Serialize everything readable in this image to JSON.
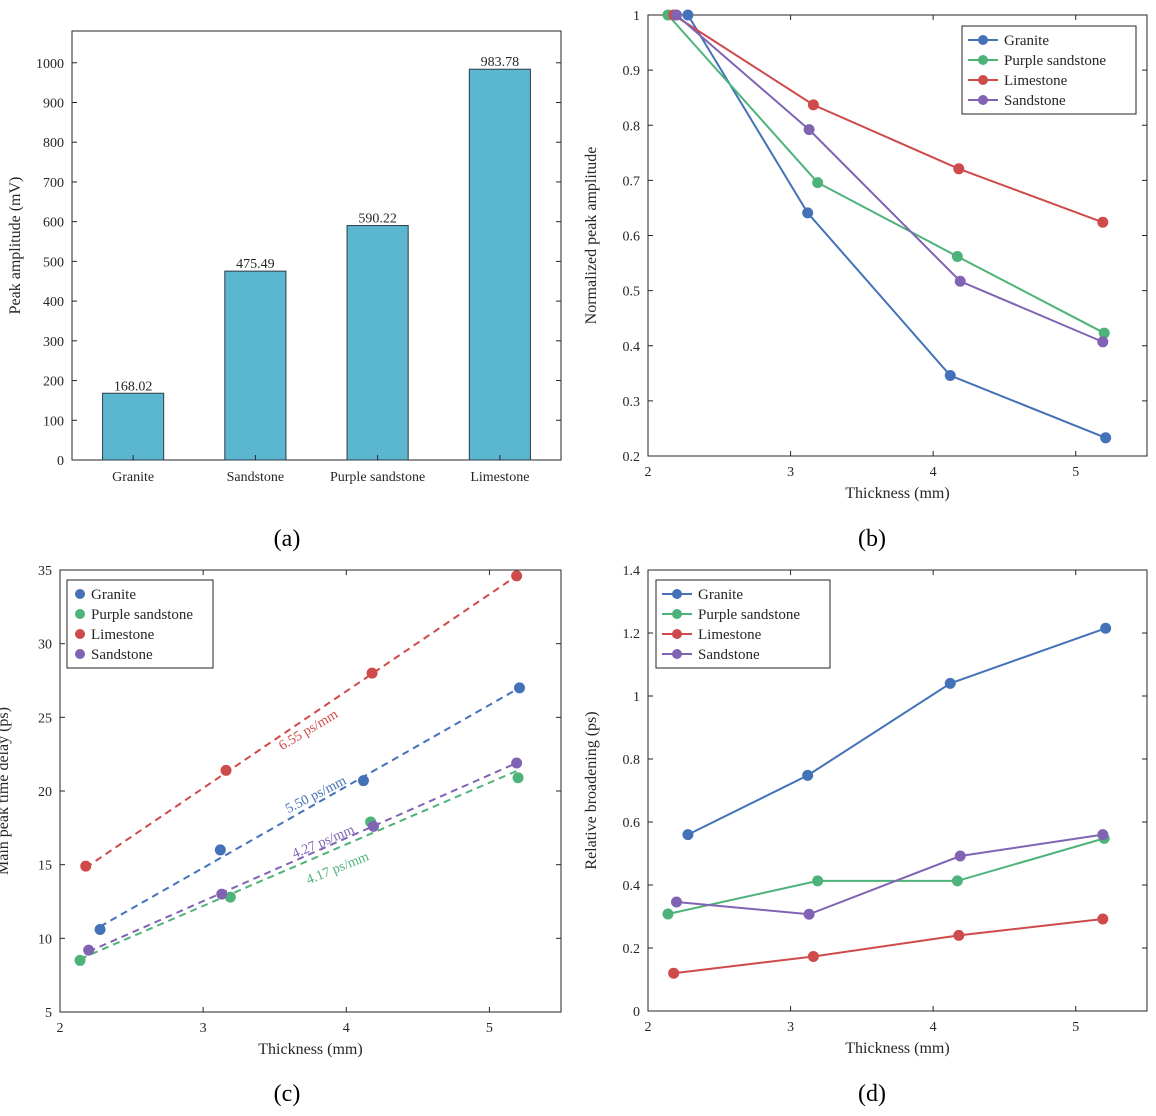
{
  "colors": {
    "granite": "#4472b8",
    "purple_sandstone": "#4db37a",
    "limestone": "#cf4a4a",
    "sandstone": "#8064b3",
    "bar_fill": "#5bb7cf"
  },
  "panel_labels": [
    "(a)",
    "(b)",
    "(c)",
    "(d)"
  ],
  "chart_data": [
    {
      "type": "bar",
      "panel": "(a)",
      "categories": [
        "Granite",
        "Sandstone",
        "Purple sandstone",
        "Limestone"
      ],
      "values": [
        168.02,
        475.49,
        590.22,
        983.78
      ],
      "value_labels": [
        "168.02",
        "475.49",
        "590.22",
        "983.78"
      ],
      "xlabel": "",
      "ylabel": "Peak amplitude (mV)",
      "ylim": [
        0,
        1080
      ],
      "yticks": [
        0,
        100,
        200,
        300,
        400,
        500,
        600,
        700,
        800,
        900,
        1000
      ],
      "grid": false
    },
    {
      "type": "line",
      "panel": "(b)",
      "xlabel": "Thickness (mm)",
      "ylabel": "Normalized peak amplitude",
      "xlim": [
        2,
        5.5
      ],
      "ylim": [
        0.2,
        1
      ],
      "xticks": [
        2,
        3,
        4,
        5
      ],
      "yticks": [
        0.2,
        0.3,
        0.4,
        0.5,
        0.6,
        0.7,
        0.8,
        0.9,
        1
      ],
      "ytick_labels": [
        "0.2",
        "0.3",
        "0.4",
        "0.5",
        "0.6",
        "0.7",
        "0.8",
        "0.9",
        "1"
      ],
      "legend_position": "top-right",
      "series": [
        {
          "name": "Granite",
          "color_key": "granite",
          "x": [
            2.28,
            3.12,
            4.12,
            5.21
          ],
          "y": [
            1.0,
            0.641,
            0.346,
            0.233
          ]
        },
        {
          "name": "Purple sandstone",
          "color_key": "purple_sandstone",
          "x": [
            2.14,
            3.19,
            4.17,
            5.2
          ],
          "y": [
            1.0,
            0.696,
            0.562,
            0.423
          ]
        },
        {
          "name": "Limestone",
          "color_key": "limestone",
          "x": [
            2.18,
            3.16,
            4.18,
            5.19
          ],
          "y": [
            1.0,
            0.837,
            0.721,
            0.624
          ]
        },
        {
          "name": "Sandstone",
          "color_key": "sandstone",
          "x": [
            2.2,
            3.13,
            4.19,
            5.19
          ],
          "y": [
            1.0,
            0.792,
            0.517,
            0.407
          ]
        }
      ]
    },
    {
      "type": "scatter",
      "panel": "(c)",
      "xlabel": "Thickness (mm)",
      "ylabel": "Main peak time delay (ps)",
      "xlim": [
        2,
        5.5
      ],
      "ylim": [
        5,
        35
      ],
      "xticks": [
        2,
        3,
        4,
        5
      ],
      "yticks": [
        5,
        10,
        15,
        20,
        25,
        30,
        35
      ],
      "legend_position": "top-left",
      "series": [
        {
          "name": "Granite",
          "color_key": "granite",
          "x": [
            2.28,
            3.12,
            4.12,
            5.21
          ],
          "y": [
            10.6,
            16.0,
            20.7,
            27.0
          ],
          "fit": [
            [
              2.28,
              10.8
            ],
            [
              5.21,
              27.0
            ]
          ],
          "slope_label": "5.50 ps/mm",
          "slope_anchor": [
            3.8,
            19.5
          ],
          "slope_angle": -27
        },
        {
          "name": "Purple sandstone",
          "color_key": "purple_sandstone",
          "x": [
            2.14,
            3.19,
            4.17,
            5.2
          ],
          "y": [
            8.5,
            12.8,
            17.9,
            20.9
          ],
          "fit": [
            [
              2.14,
              8.6
            ],
            [
              5.2,
              21.4
            ]
          ],
          "slope_label": "4.17 ps/mm",
          "slope_anchor": [
            3.95,
            14.5
          ],
          "slope_angle": -22
        },
        {
          "name": "Limestone",
          "color_key": "limestone",
          "x": [
            2.18,
            3.16,
            4.18,
            5.19
          ],
          "y": [
            14.9,
            21.4,
            28.0,
            34.6
          ],
          "fit": [
            [
              2.18,
              14.8
            ],
            [
              5.19,
              34.6
            ]
          ],
          "slope_label": "6.55 ps/mm",
          "slope_anchor": [
            3.75,
            23.9
          ],
          "slope_angle": -31
        },
        {
          "name": "Sandstone",
          "color_key": "sandstone",
          "x": [
            2.2,
            3.13,
            4.19,
            5.19
          ],
          "y": [
            9.2,
            13.0,
            17.6,
            21.9
          ],
          "fit": [
            [
              2.2,
              9.1
            ],
            [
              5.19,
              21.9
            ]
          ],
          "slope_label": "4.27 ps/mm",
          "slope_anchor": [
            3.85,
            16.3
          ],
          "slope_angle": -23
        }
      ]
    },
    {
      "type": "line",
      "panel": "(d)",
      "xlabel": "Thickness (mm)",
      "ylabel": "Relative broadening (ps)",
      "xlim": [
        2,
        5.5
      ],
      "ylim": [
        0,
        1.4
      ],
      "xticks": [
        2,
        3,
        4,
        5
      ],
      "yticks": [
        0,
        0.2,
        0.4,
        0.6,
        0.8,
        1,
        1.2,
        1.4
      ],
      "ytick_labels": [
        "0",
        "0.2",
        "0.4",
        "0.6",
        "0.8",
        "1",
        "1.2",
        "1.4"
      ],
      "legend_position": "top-left",
      "series": [
        {
          "name": "Granite",
          "color_key": "granite",
          "x": [
            2.28,
            3.12,
            4.12,
            5.21
          ],
          "y": [
            0.56,
            0.748,
            1.04,
            1.215
          ]
        },
        {
          "name": "Purple sandstone",
          "color_key": "purple_sandstone",
          "x": [
            2.14,
            3.19,
            4.17,
            5.2
          ],
          "y": [
            0.308,
            0.413,
            0.413,
            0.548
          ]
        },
        {
          "name": "Limestone",
          "color_key": "limestone",
          "x": [
            2.18,
            3.16,
            4.18,
            5.19
          ],
          "y": [
            0.12,
            0.173,
            0.24,
            0.292
          ]
        },
        {
          "name": "Sandstone",
          "color_key": "sandstone",
          "x": [
            2.2,
            3.13,
            4.19,
            5.19
          ],
          "y": [
            0.346,
            0.307,
            0.492,
            0.56
          ]
        }
      ]
    }
  ]
}
